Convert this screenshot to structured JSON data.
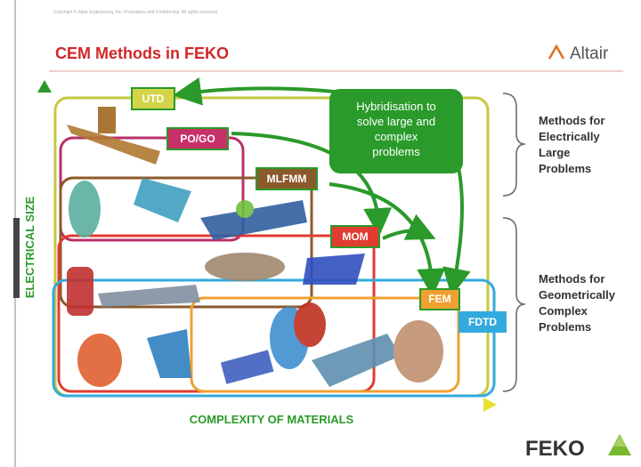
{
  "copyright": "Copyright © Altair Engineering, Inc. Proprietary and Confidential. All rights reserved.",
  "header": {
    "title": "CEM Methods in FEKO",
    "logo": "Altair"
  },
  "methods": [
    {
      "label": "UTD"
    },
    {
      "label": "PO/GO"
    },
    {
      "label": "MLFMM"
    },
    {
      "label": "MOM"
    },
    {
      "label": "FEM"
    },
    {
      "label": "FDTD"
    }
  ],
  "callout": {
    "lines": [
      "Hybridisation to",
      "solve large and",
      "complex",
      "problems"
    ]
  },
  "groups": [
    {
      "lines": [
        "Methods for",
        "Electrically",
        "Large",
        "Problems"
      ]
    },
    {
      "lines": [
        "Methods for",
        "Geometrically",
        "Complex",
        "Problems"
      ]
    }
  ],
  "axes": {
    "y": "ELECTRICAL SIZE",
    "x": "COMPLEXITY OF MATERIALS"
  },
  "footer": {
    "logo": "FEKO"
  }
}
